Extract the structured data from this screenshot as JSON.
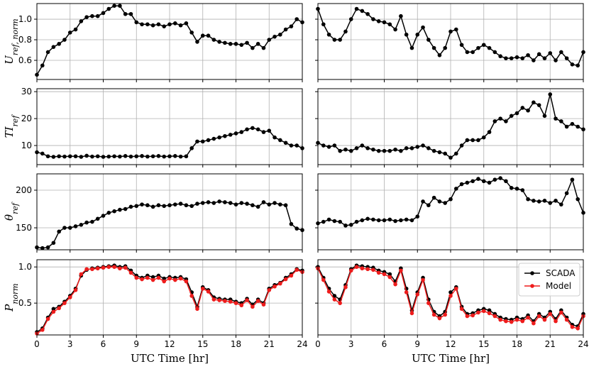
{
  "chart_data": [
    {
      "type": "line",
      "ylabel": {
        "base": "U",
        "sub": "ref, norm"
      },
      "xlim": [
        0,
        24
      ],
      "xticks": [
        0,
        3,
        6,
        9,
        12,
        15,
        18,
        21,
        24
      ],
      "ylim": [
        0.414,
        1.152
      ],
      "yticks": [
        0.6,
        0.8,
        {
          "value": 1,
          "label": "1.0"
        }
      ],
      "show_ytick_labels": true,
      "show_xtick_labels": false,
      "grid": true,
      "x": [
        0,
        0.5,
        1,
        1.5,
        2,
        2.5,
        3,
        3.5,
        4,
        4.5,
        5,
        5.5,
        6,
        6.5,
        7,
        7.5,
        8,
        8.5,
        9,
        9.5,
        10,
        10.5,
        11,
        11.5,
        12,
        12.5,
        13,
        13.5,
        14,
        14.5,
        15,
        15.5,
        16,
        16.5,
        17,
        17.5,
        18,
        18.5,
        19,
        19.5,
        20,
        20.5,
        21,
        21.5,
        22,
        22.5,
        23,
        23.5,
        24
      ],
      "series": [
        {
          "color": "#000000",
          "values": [
            0.46,
            0.55,
            0.68,
            0.73,
            0.76,
            0.8,
            0.87,
            0.9,
            0.98,
            1.02,
            1.03,
            1.03,
            1.06,
            1.1,
            1.13,
            1.13,
            1.05,
            1.05,
            0.97,
            0.95,
            0.95,
            0.94,
            0.95,
            0.93,
            0.95,
            0.96,
            0.94,
            0.96,
            0.87,
            0.78,
            0.84,
            0.84,
            0.8,
            0.78,
            0.77,
            0.76,
            0.76,
            0.75,
            0.77,
            0.72,
            0.76,
            0.72,
            0.8,
            0.83,
            0.85,
            0.9,
            0.93,
            1.0,
            0.97
          ]
        }
      ]
    },
    {
      "type": "line",
      "xlim": [
        0,
        24
      ],
      "xticks": [
        0,
        3,
        6,
        9,
        12,
        15,
        18,
        21,
        24
      ],
      "ylim": [
        0.414,
        1.152
      ],
      "yticks": [
        0.6,
        0.8,
        1
      ],
      "show_ytick_labels": false,
      "show_xtick_labels": false,
      "grid": true,
      "x": [
        0,
        0.5,
        1,
        1.5,
        2,
        2.5,
        3,
        3.5,
        4,
        4.5,
        5,
        5.5,
        6,
        6.5,
        7,
        7.5,
        8,
        8.5,
        9,
        9.5,
        10,
        10.5,
        11,
        11.5,
        12,
        12.5,
        13,
        13.5,
        14,
        14.5,
        15,
        15.5,
        16,
        16.5,
        17,
        17.5,
        18,
        18.5,
        19,
        19.5,
        20,
        20.5,
        21,
        21.5,
        22,
        22.5,
        23,
        23.5,
        24
      ],
      "series": [
        {
          "color": "#000000",
          "values": [
            1.1,
            0.95,
            0.85,
            0.8,
            0.8,
            0.88,
            1.0,
            1.1,
            1.08,
            1.05,
            1.0,
            0.98,
            0.97,
            0.95,
            0.9,
            1.03,
            0.85,
            0.72,
            0.85,
            0.92,
            0.8,
            0.72,
            0.65,
            0.72,
            0.88,
            0.9,
            0.75,
            0.68,
            0.68,
            0.72,
            0.75,
            0.72,
            0.68,
            0.64,
            0.62,
            0.62,
            0.63,
            0.62,
            0.65,
            0.6,
            0.66,
            0.62,
            0.67,
            0.6,
            0.68,
            0.62,
            0.56,
            0.55,
            0.68
          ]
        }
      ]
    },
    {
      "type": "line",
      "ylabel": {
        "base": "TI",
        "sub": "ref"
      },
      "xlim": [
        0,
        24
      ],
      "xticks": [
        0,
        3,
        6,
        9,
        12,
        15,
        18,
        21,
        24
      ],
      "ylim": [
        2.9,
        31.1
      ],
      "yticks": [
        10,
        20,
        30
      ],
      "show_ytick_labels": true,
      "show_xtick_labels": false,
      "grid": true,
      "x": [
        0,
        0.5,
        1,
        1.5,
        2,
        2.5,
        3,
        3.5,
        4,
        4.5,
        5,
        5.5,
        6,
        6.5,
        7,
        7.5,
        8,
        8.5,
        9,
        9.5,
        10,
        10.5,
        11,
        11.5,
        12,
        12.5,
        13,
        13.5,
        14,
        14.5,
        15,
        15.5,
        16,
        16.5,
        17,
        17.5,
        18,
        18.5,
        19,
        19.5,
        20,
        20.5,
        21,
        21.5,
        22,
        22.5,
        23,
        23.5,
        24
      ],
      "series": [
        {
          "color": "#000000",
          "values": [
            7.5,
            7,
            6,
            5.8,
            6,
            5.9,
            6,
            6,
            5.8,
            6.2,
            5.9,
            6,
            5.8,
            5.9,
            6,
            5.9,
            6.1,
            5.9,
            6,
            6.1,
            5.9,
            6,
            6.1,
            5.9,
            6,
            6.1,
            5.9,
            6,
            9,
            11.5,
            11.5,
            12,
            12.5,
            13,
            13.5,
            14,
            14.5,
            15,
            16,
            16.5,
            16,
            15,
            15.5,
            13,
            12,
            11,
            10,
            10,
            9
          ]
        }
      ]
    },
    {
      "type": "line",
      "xlim": [
        0,
        24
      ],
      "xticks": [
        0,
        3,
        6,
        9,
        12,
        15,
        18,
        21,
        24
      ],
      "ylim": [
        2.9,
        31.1
      ],
      "yticks": [
        10,
        20,
        30
      ],
      "show_ytick_labels": false,
      "show_xtick_labels": false,
      "grid": true,
      "x": [
        0,
        0.5,
        1,
        1.5,
        2,
        2.5,
        3,
        3.5,
        4,
        4.5,
        5,
        5.5,
        6,
        6.5,
        7,
        7.5,
        8,
        8.5,
        9,
        9.5,
        10,
        10.5,
        11,
        11.5,
        12,
        12.5,
        13,
        13.5,
        14,
        14.5,
        15,
        15.5,
        16,
        16.5,
        17,
        17.5,
        18,
        18.5,
        19,
        19.5,
        20,
        20.5,
        21,
        21.5,
        22,
        22.5,
        23,
        23.5,
        24
      ],
      "series": [
        {
          "color": "#000000",
          "values": [
            11,
            10,
            9.5,
            10,
            8,
            8.5,
            8,
            9,
            10,
            9,
            8.5,
            8,
            8,
            8,
            8.5,
            8,
            9,
            9,
            9.5,
            10,
            9,
            8,
            7.5,
            7,
            5.5,
            7,
            10,
            12,
            12,
            12,
            13,
            15,
            19,
            20,
            19,
            21,
            22,
            24,
            23,
            26,
            25,
            21,
            29,
            20,
            19,
            17,
            18,
            17,
            16
          ]
        }
      ]
    },
    {
      "type": "line",
      "ylabel": {
        "base": "θ",
        "sub": "ref"
      },
      "xlim": [
        0,
        24
      ],
      "xticks": [
        0,
        3,
        6,
        9,
        12,
        15,
        18,
        21,
        24
      ],
      "ylim": [
        120.8,
        221.7
      ],
      "yticks": [
        150,
        200
      ],
      "show_ytick_labels": true,
      "show_xtick_labels": false,
      "grid": true,
      "x": [
        0,
        0.5,
        1,
        1.5,
        2,
        2.5,
        3,
        3.5,
        4,
        4.5,
        5,
        5.5,
        6,
        6.5,
        7,
        7.5,
        8,
        8.5,
        9,
        9.5,
        10,
        10.5,
        11,
        11.5,
        12,
        12.5,
        13,
        13.5,
        14,
        14.5,
        15,
        15.5,
        16,
        16.5,
        17,
        17.5,
        18,
        18.5,
        19,
        19.5,
        20,
        20.5,
        21,
        21.5,
        22,
        22.5,
        23,
        23.5,
        24
      ],
      "series": [
        {
          "color": "#000000",
          "values": [
            124,
            123,
            124,
            130,
            145,
            150,
            150,
            152,
            154,
            157,
            158,
            162,
            166,
            170,
            172,
            174,
            175,
            178,
            179,
            181,
            180,
            178,
            180,
            179,
            180,
            181,
            182,
            180,
            179,
            182,
            183,
            184,
            183,
            185,
            184,
            183,
            181,
            183,
            182,
            180,
            178,
            184,
            181,
            183,
            181,
            180,
            155,
            149,
            147
          ]
        }
      ]
    },
    {
      "type": "line",
      "xlim": [
        0,
        24
      ],
      "xticks": [
        0,
        3,
        6,
        9,
        12,
        15,
        18,
        21,
        24
      ],
      "ylim": [
        120.8,
        221.7
      ],
      "yticks": [
        150,
        200
      ],
      "show_ytick_labels": false,
      "show_xtick_labels": false,
      "grid": true,
      "x": [
        0,
        0.5,
        1,
        1.5,
        2,
        2.5,
        3,
        3.5,
        4,
        4.5,
        5,
        5.5,
        6,
        6.5,
        7,
        7.5,
        8,
        8.5,
        9,
        9.5,
        10,
        10.5,
        11,
        11.5,
        12,
        12.5,
        13,
        13.5,
        14,
        14.5,
        15,
        15.5,
        16,
        16.5,
        17,
        17.5,
        18,
        18.5,
        19,
        19.5,
        20,
        20.5,
        21,
        21.5,
        22,
        22.5,
        23,
        23.5,
        24
      ],
      "series": [
        {
          "color": "#000000",
          "values": [
            156,
            158,
            161,
            159,
            158,
            153,
            154,
            158,
            160,
            162,
            161,
            160,
            160,
            161,
            159,
            160,
            161,
            160,
            165,
            185,
            180,
            190,
            185,
            183,
            188,
            202,
            208,
            210,
            212,
            215,
            212,
            210,
            214,
            216,
            212,
            203,
            202,
            200,
            188,
            186,
            185,
            186,
            183,
            186,
            181,
            196,
            214,
            188,
            170
          ]
        }
      ]
    },
    {
      "type": "line",
      "ylabel": {
        "base": "P",
        "sub": "norm"
      },
      "xlabel": "UTC Time [hr]",
      "xlim": [
        0,
        24
      ],
      "xticks": [
        0,
        3,
        6,
        9,
        12,
        15,
        18,
        21,
        24
      ],
      "ylim": [
        0.06,
        1.1
      ],
      "yticks": [
        0.5,
        {
          "value": 1,
          "label": "1.0"
        }
      ],
      "show_ytick_labels": true,
      "show_xtick_labels": true,
      "grid": true,
      "x": [
        0,
        0.5,
        1,
        1.5,
        2,
        2.5,
        3,
        3.5,
        4,
        4.5,
        5,
        5.5,
        6,
        6.5,
        7,
        7.5,
        8,
        8.5,
        9,
        9.5,
        10,
        10.5,
        11,
        11.5,
        12,
        12.5,
        13,
        13.5,
        14,
        14.5,
        15,
        15.5,
        16,
        16.5,
        17,
        17.5,
        18,
        18.5,
        19,
        19.5,
        20,
        20.5,
        21,
        21.5,
        22,
        22.5,
        23,
        23.5,
        24
      ],
      "series": [
        {
          "color": "#000000",
          "values": [
            0.1,
            0.15,
            0.3,
            0.42,
            0.45,
            0.52,
            0.6,
            0.7,
            0.88,
            0.96,
            0.98,
            0.99,
            1.0,
            1.01,
            1.02,
            1.0,
            1.01,
            0.95,
            0.88,
            0.85,
            0.88,
            0.86,
            0.88,
            0.84,
            0.86,
            0.85,
            0.86,
            0.83,
            0.65,
            0.45,
            0.72,
            0.68,
            0.58,
            0.56,
            0.55,
            0.55,
            0.52,
            0.5,
            0.56,
            0.48,
            0.55,
            0.5,
            0.7,
            0.75,
            0.78,
            0.85,
            0.9,
            0.97,
            0.95
          ]
        },
        {
          "color": "#ee1c1c",
          "values": [
            0.08,
            0.13,
            0.28,
            0.38,
            0.43,
            0.5,
            0.58,
            0.68,
            0.9,
            0.97,
            0.97,
            0.98,
            0.99,
            1.0,
            1.0,
            0.98,
            0.99,
            0.92,
            0.85,
            0.83,
            0.85,
            0.82,
            0.85,
            0.8,
            0.84,
            0.82,
            0.84,
            0.8,
            0.6,
            0.42,
            0.7,
            0.66,
            0.55,
            0.54,
            0.53,
            0.52,
            0.5,
            0.47,
            0.54,
            0.45,
            0.53,
            0.48,
            0.68,
            0.73,
            0.77,
            0.83,
            0.88,
            0.96,
            0.93
          ]
        }
      ]
    },
    {
      "type": "line",
      "xlabel": "UTC Time [hr]",
      "xlim": [
        0,
        24
      ],
      "xticks": [
        0,
        3,
        6,
        9,
        12,
        15,
        18,
        21,
        24
      ],
      "ylim": [
        0.06,
        1.1
      ],
      "yticks": [
        0.5,
        1
      ],
      "show_ytick_labels": false,
      "show_xtick_labels": true,
      "grid": true,
      "legend": "upper right",
      "x": [
        0,
        0.5,
        1,
        1.5,
        2,
        2.5,
        3,
        3.5,
        4,
        4.5,
        5,
        5.5,
        6,
        6.5,
        7,
        7.5,
        8,
        8.5,
        9,
        9.5,
        10,
        10.5,
        11,
        11.5,
        12,
        12.5,
        13,
        13.5,
        14,
        14.5,
        15,
        15.5,
        16,
        16.5,
        17,
        17.5,
        18,
        18.5,
        19,
        19.5,
        20,
        20.5,
        21,
        21.5,
        22,
        22.5,
        23,
        23.5,
        24
      ],
      "series": [
        {
          "name": "SCADA",
          "color": "#000000",
          "values": [
            1.0,
            0.85,
            0.7,
            0.6,
            0.55,
            0.75,
            0.97,
            1.02,
            1.01,
            1.0,
            0.99,
            0.95,
            0.93,
            0.9,
            0.8,
            0.98,
            0.7,
            0.4,
            0.65,
            0.85,
            0.55,
            0.38,
            0.32,
            0.38,
            0.65,
            0.72,
            0.45,
            0.35,
            0.36,
            0.4,
            0.42,
            0.4,
            0.35,
            0.3,
            0.28,
            0.27,
            0.3,
            0.28,
            0.33,
            0.25,
            0.35,
            0.3,
            0.38,
            0.28,
            0.4,
            0.3,
            0.2,
            0.18,
            0.35
          ]
        },
        {
          "name": "Model",
          "color": "#ee1c1c",
          "values": [
            0.98,
            0.82,
            0.66,
            0.55,
            0.5,
            0.72,
            0.95,
            1.0,
            0.98,
            0.97,
            0.96,
            0.92,
            0.9,
            0.86,
            0.76,
            0.95,
            0.65,
            0.36,
            0.62,
            0.82,
            0.5,
            0.34,
            0.29,
            0.34,
            0.6,
            0.7,
            0.42,
            0.32,
            0.33,
            0.37,
            0.39,
            0.36,
            0.32,
            0.27,
            0.25,
            0.24,
            0.27,
            0.25,
            0.3,
            0.22,
            0.32,
            0.27,
            0.35,
            0.25,
            0.37,
            0.27,
            0.17,
            0.15,
            0.32
          ]
        }
      ]
    }
  ]
}
